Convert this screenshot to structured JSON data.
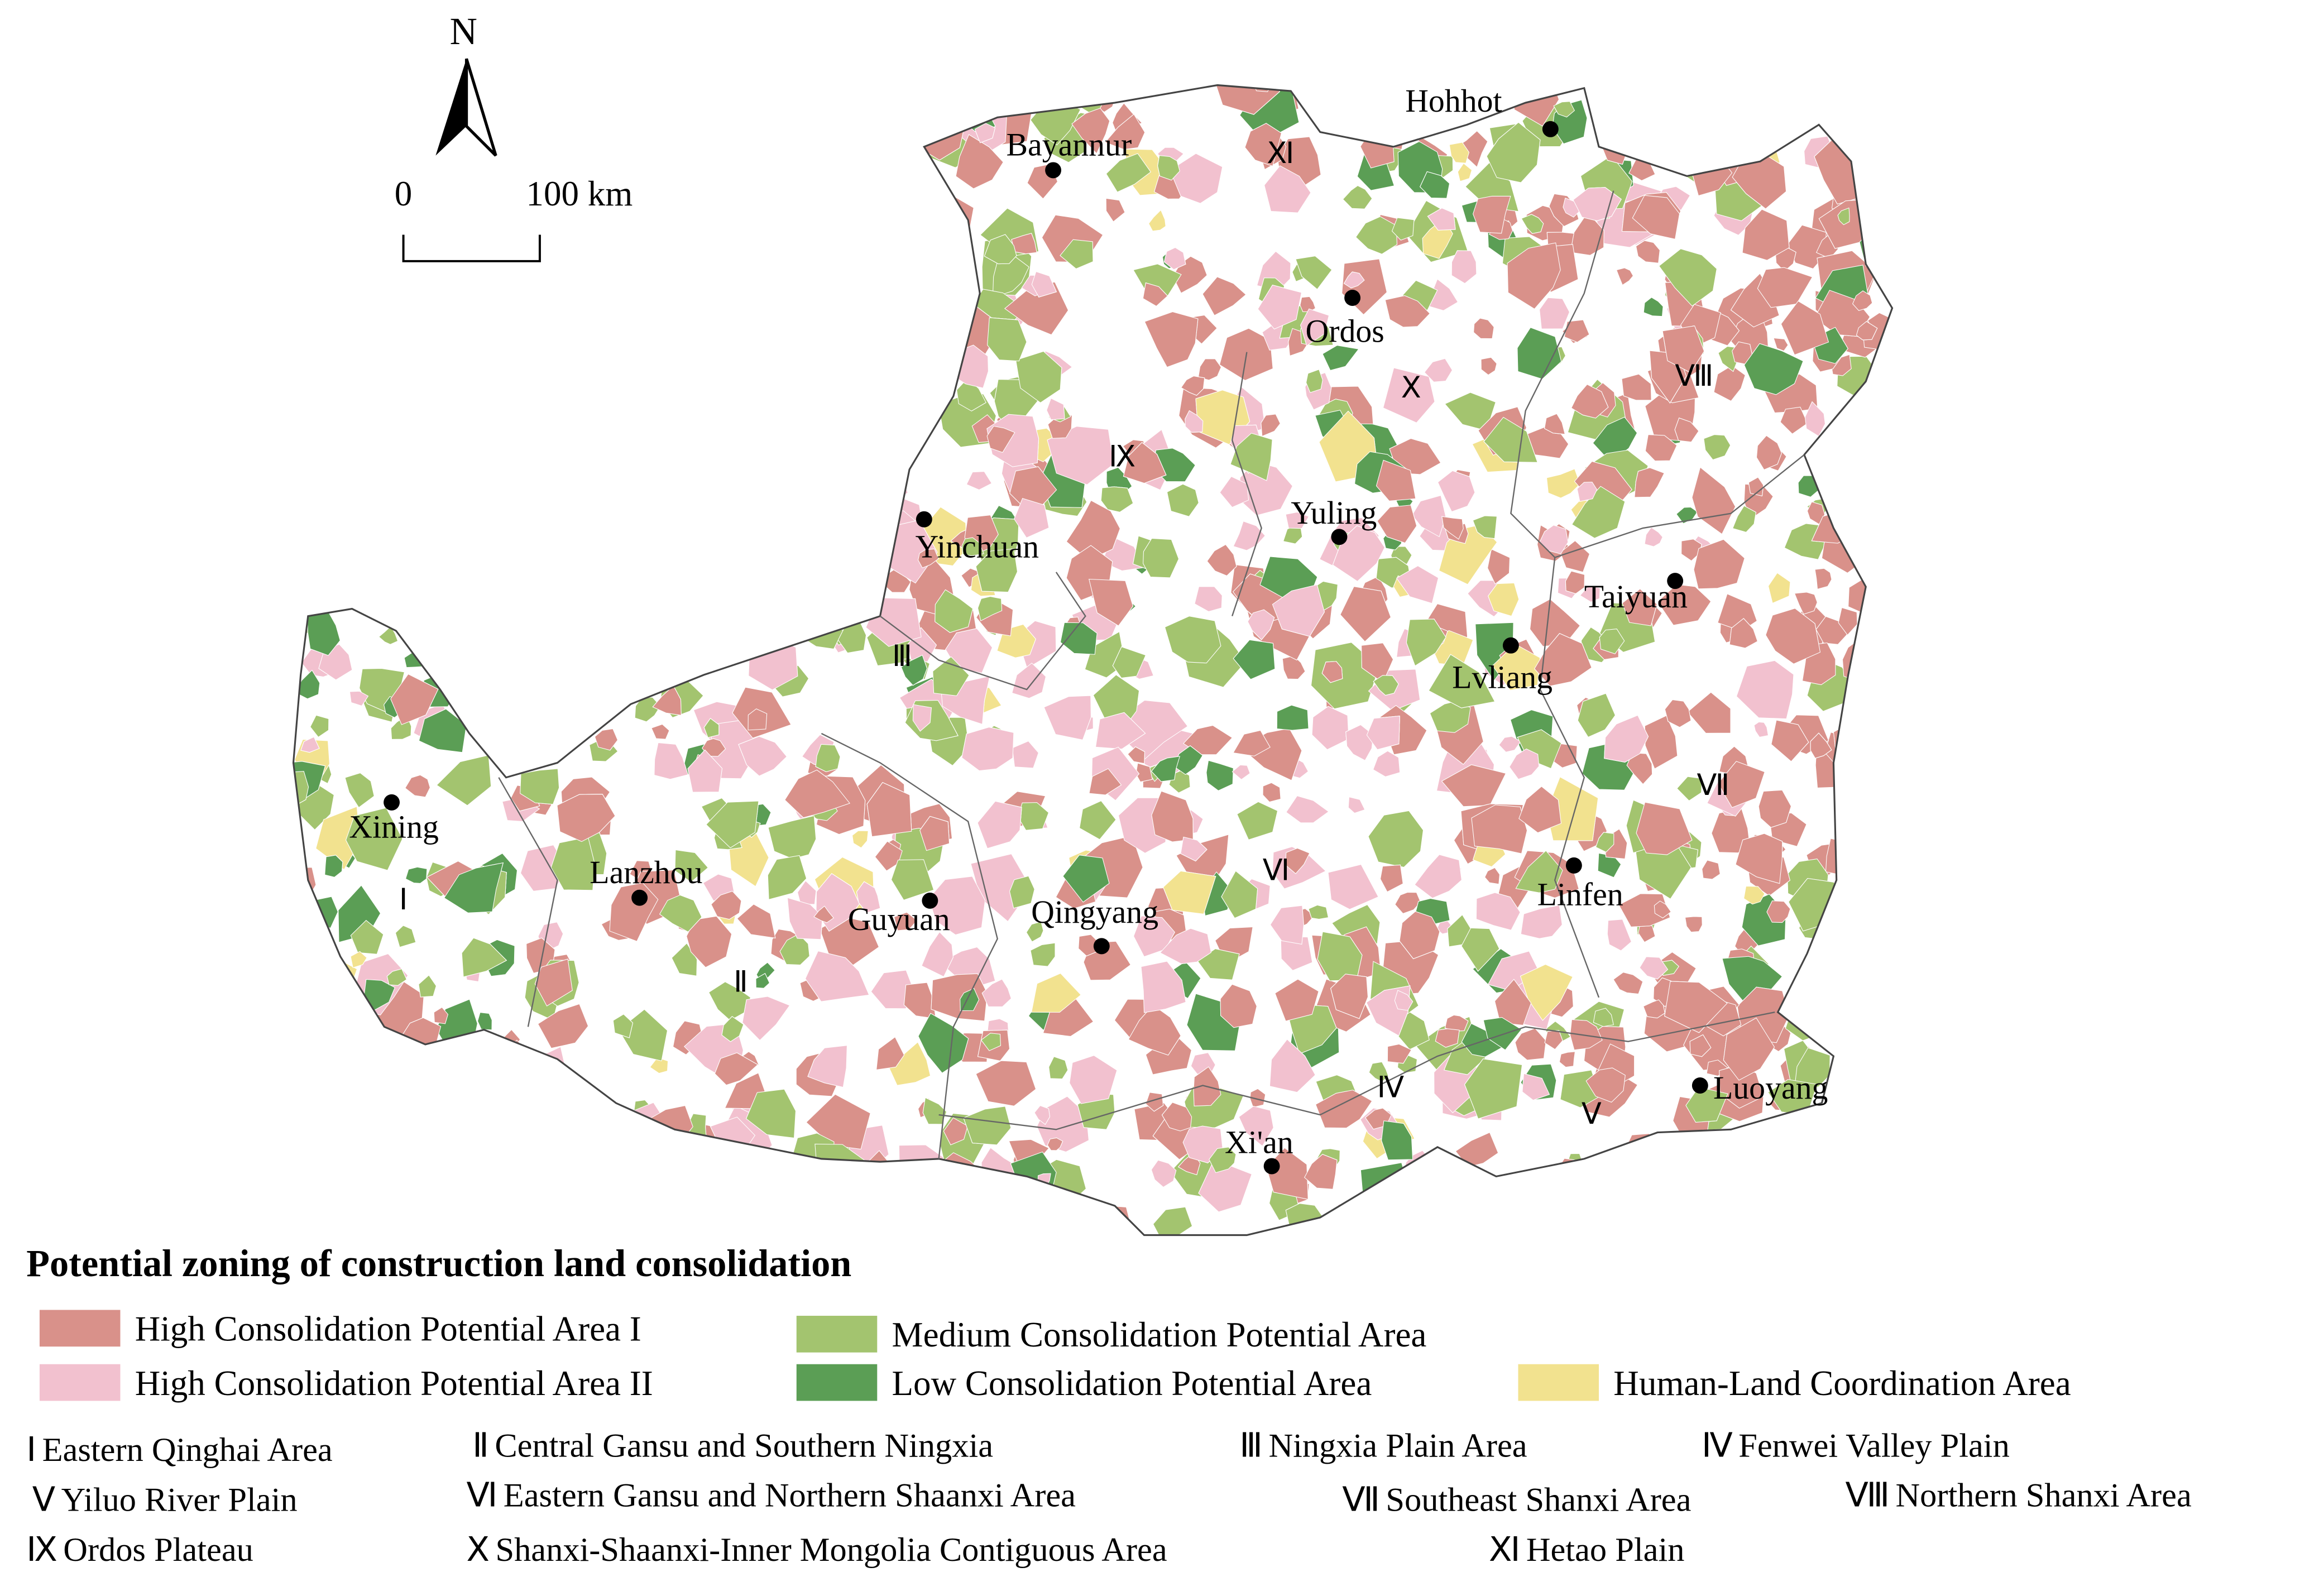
{
  "north_label": "N",
  "scale": {
    "start": "0",
    "end": "100 km"
  },
  "cities": [
    "Hohhot",
    "Bayannur",
    "Ordos",
    "Yinchuan",
    "Yuling",
    "Taiyuan",
    "Lvliang",
    "Xining",
    "Lanzhou",
    "Guyuan",
    "Qingyang",
    "Linfen",
    "Luoyang",
    "Xi'an"
  ],
  "legend": {
    "title": "Potential zoning of construction land consolidation",
    "items": [
      {
        "label": "High Consolidation Potential Area I",
        "color": "#d9918a"
      },
      {
        "label": "Medium Consolidation Potential Area",
        "color": "#a3c46f"
      },
      {
        "label": "High Consolidation Potential Area II",
        "color": "#f2c1cf"
      },
      {
        "label": "Low Consolidation Potential Area",
        "color": "#5b9e55"
      },
      {
        "label": "Human-Land Coordination Area",
        "color": "#f2e28f"
      }
    ]
  },
  "zones": [
    {
      "numeral": "Ⅰ",
      "name": "Eastern Qinghai Area"
    },
    {
      "numeral": "Ⅱ",
      "name": "Central Gansu and Southern Ningxia"
    },
    {
      "numeral": "Ⅲ",
      "name": "Ningxia Plain Area"
    },
    {
      "numeral": "Ⅳ",
      "name": "Fenwei Valley Plain"
    },
    {
      "numeral": "Ⅴ",
      "name": "Yiluo River Plain"
    },
    {
      "numeral": "Ⅵ",
      "name": "Eastern Gansu and Northern Shaanxi Area"
    },
    {
      "numeral": "Ⅶ",
      "name": "Southeast Shanxi Area"
    },
    {
      "numeral": "Ⅷ",
      "name": "Northern Shanxi Area"
    },
    {
      "numeral": "Ⅸ",
      "name": "Ordos Plateau"
    },
    {
      "numeral": "Ⅹ",
      "name": "Shanxi-Shaanxi-Inner Mongolia Contiguous Area"
    },
    {
      "numeral": "Ⅺ",
      "name": "Hetao Plain"
    }
  ]
}
